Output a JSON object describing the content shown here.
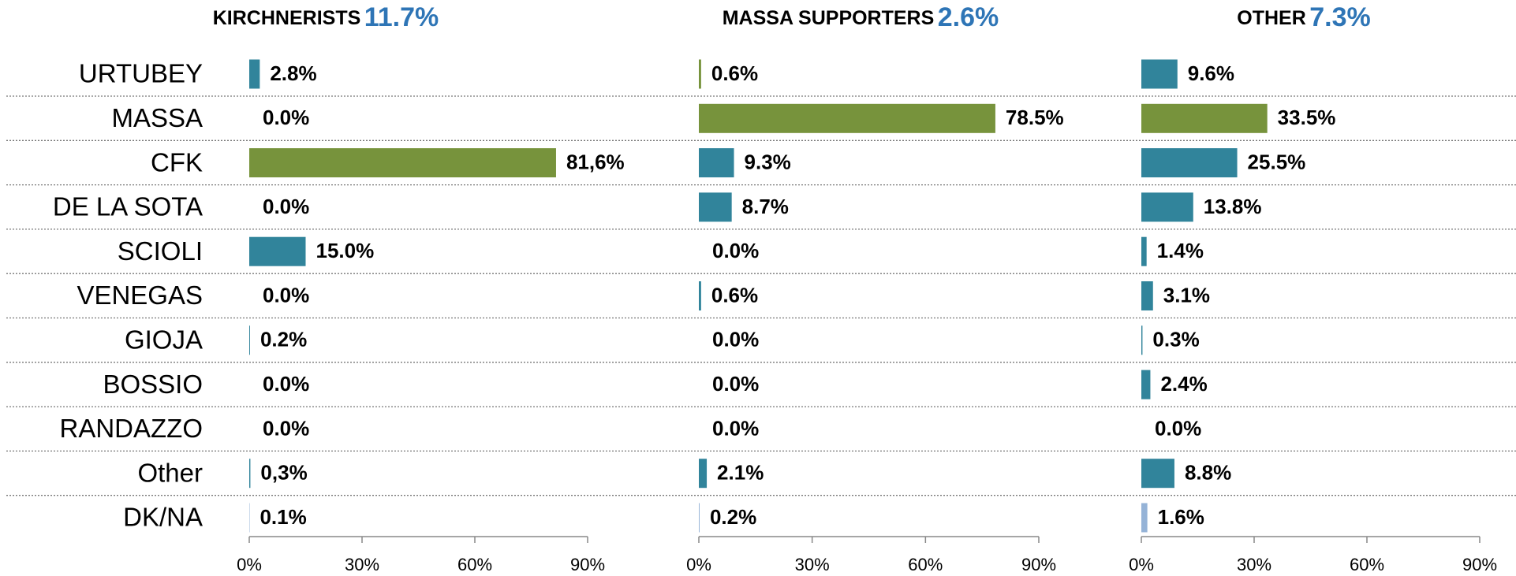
{
  "chart_data": [
    {
      "type": "bar",
      "orientation": "horizontal",
      "title": "KIRCHNERISTS",
      "title_value": "11.7%",
      "categories": [
        "URTUBEY",
        "MASSA",
        "CFK",
        "DE LA SOTA",
        "SCIOLI",
        "VENEGAS",
        "GIOJA",
        "BOSSIO",
        "RANDAZZO",
        "Other",
        "DK/NA"
      ],
      "values": [
        2.8,
        0,
        81.6,
        0,
        15,
        0,
        0.2,
        0,
        0,
        0.3,
        0.1
      ],
      "value_labels": [
        "2.8%",
        "0.0%",
        "81,6%",
        "0.0%",
        "15.0%",
        "0.0%",
        "0.2%",
        "0.0%",
        "0.0%",
        "0,3%",
        "0.1%"
      ],
      "colors": [
        "#31849b",
        "#31849b",
        "#77933c",
        "#31849b",
        "#31849b",
        "#31849b",
        "#31849b",
        "#31849b",
        "#31849b",
        "#31849b",
        "#95b3d7"
      ],
      "xlim": [
        0,
        90
      ],
      "xticks": [
        {
          "value": 0,
          "label": "0%"
        },
        {
          "value": 30,
          "label": "30%"
        },
        {
          "value": 60,
          "label": "60%"
        },
        {
          "value": 90,
          "label": "90%"
        }
      ]
    },
    {
      "type": "bar",
      "orientation": "horizontal",
      "title": "MASSA SUPPORTERS",
      "title_value": "2.6%",
      "values": [
        0.6,
        78.5,
        9.3,
        8.7,
        0,
        0.6,
        0,
        0,
        0,
        2.1,
        0.2
      ],
      "value_labels": [
        "0.6%",
        "78.5%",
        "9.3%",
        "8.7%",
        "0.0%",
        "0.6%",
        "0.0%",
        "0.0%",
        "0.0%",
        "2.1%",
        "0.2%"
      ],
      "colors": [
        "#77933c",
        "#77933c",
        "#31849b",
        "#31849b",
        "#31849b",
        "#31849b",
        "#31849b",
        "#31849b",
        "#31849b",
        "#31849b",
        "#95b3d7"
      ],
      "xlim": [
        0,
        90
      ],
      "xticks": [
        {
          "value": 0,
          "label": "0%"
        },
        {
          "value": 30,
          "label": "30%"
        },
        {
          "value": 60,
          "label": "60%"
        },
        {
          "value": 90,
          "label": "90%"
        }
      ]
    },
    {
      "type": "bar",
      "orientation": "horizontal",
      "title": "OTHER",
      "title_value": "7.3%",
      "values": [
        9.6,
        33.5,
        25.5,
        13.8,
        1.4,
        3.1,
        0.3,
        2.4,
        0,
        8.8,
        1.6
      ],
      "value_labels": [
        "9.6%",
        "33.5%",
        "25.5%",
        "13.8%",
        "1.4%",
        "3.1%",
        "0.3%",
        "2.4%",
        "0.0%",
        "8.8%",
        "1.6%"
      ],
      "colors": [
        "#31849b",
        "#77933c",
        "#31849b",
        "#31849b",
        "#31849b",
        "#31849b",
        "#31849b",
        "#31849b",
        "#31849b",
        "#31849b",
        "#95b3d7"
      ],
      "xlim": [
        0,
        90
      ],
      "xticks": [
        {
          "value": 0,
          "label": "0%"
        },
        {
          "value": 30,
          "label": "30%"
        },
        {
          "value": 60,
          "label": "60%"
        },
        {
          "value": 90,
          "label": "90%"
        }
      ]
    }
  ]
}
